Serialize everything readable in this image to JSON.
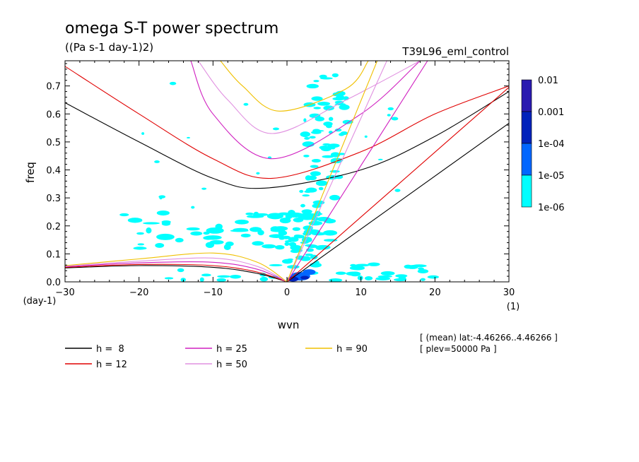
{
  "chart_data": {
    "type": "contour",
    "title": "omega S-T power spectrum",
    "subtitle": "((Pa s-1 day-1)2)",
    "run_name": "T39L96_eml_control",
    "xlabel": "wvn",
    "ylabel": "freq",
    "x_unit": "(1)",
    "y_unit": "(day-1)",
    "xlim": [
      -30,
      30
    ],
    "ylim": [
      0,
      0.79
    ],
    "xticks": [
      -30,
      -20,
      -10,
      0,
      10,
      20,
      30
    ],
    "yticks": [
      0.0,
      0.1,
      0.2,
      0.3,
      0.4,
      0.5,
      0.6,
      0.7
    ],
    "colorbar": {
      "levels": [
        "1e-06",
        "1e-05",
        "1e-04",
        "0.001",
        "0.01"
      ],
      "colors": [
        "#00ffff",
        "#0066ff",
        "#0022bb",
        "#2a1ab0"
      ]
    },
    "legend": [
      {
        "label": "h =  8",
        "color": "#000000"
      },
      {
        "label": "h = 12",
        "color": "#e00000"
      },
      {
        "label": "h = 25",
        "color": "#d020c0"
      },
      {
        "label": "h = 50",
        "color": "#e090e0"
      },
      {
        "label": "h = 90",
        "color": "#f0c000"
      }
    ],
    "dispersion_curves": {
      "kelvin": [
        {
          "h": 8,
          "points": [
            [
              0,
              0
            ],
            [
              30,
              0.567
            ]
          ]
        },
        {
          "h": 12,
          "points": [
            [
              0,
              0
            ],
            [
              30,
              0.695
            ]
          ]
        },
        {
          "h": 25,
          "points": [
            [
              0,
              0
            ],
            [
              19,
              0.79
            ]
          ]
        },
        {
          "h": 50,
          "points": [
            [
              0,
              0
            ],
            [
              13.5,
              0.79
            ]
          ]
        },
        {
          "h": 90,
          "points": [
            [
              0,
              0
            ],
            [
              12.2,
              0.79
            ]
          ]
        }
      ],
      "inertia_gravity_n1": [
        {
          "h": 8,
          "points": [
            [
              -30,
              0.64
            ],
            [
              -20,
              0.5
            ],
            [
              -10,
              0.37
            ],
            [
              -3,
              0.335
            ],
            [
              10,
              0.4
            ],
            [
              20,
              0.52
            ],
            [
              30,
              0.68
            ]
          ]
        },
        {
          "h": 12,
          "points": [
            [
              -30,
              0.77
            ],
            [
              -20,
              0.6
            ],
            [
              -10,
              0.44
            ],
            [
              -2,
              0.37
            ],
            [
              10,
              0.465
            ],
            [
              20,
              0.6
            ],
            [
              30,
              0.7
            ]
          ]
        },
        {
          "h": 25,
          "points": [
            [
              -13,
              0.79
            ],
            [
              -10,
              0.6
            ],
            [
              -2,
              0.44
            ],
            [
              10,
              0.6
            ],
            [
              18,
              0.79
            ]
          ]
        },
        {
          "h": 50,
          "points": [
            [
              -12,
              0.79
            ],
            [
              -8,
              0.65
            ],
            [
              -2,
              0.53
            ],
            [
              8,
              0.65
            ],
            [
              18,
              0.79
            ]
          ]
        },
        {
          "h": 90,
          "points": [
            [
              -9,
              0.79
            ],
            [
              -6,
              0.7
            ],
            [
              -1,
              0.61
            ],
            [
              8,
              0.69
            ],
            [
              11,
              0.79
            ]
          ]
        }
      ],
      "rossby_n1": [
        {
          "h": 8,
          "points": [
            [
              -30,
              0.05
            ],
            [
              -20,
              0.058
            ],
            [
              -10,
              0.052
            ],
            [
              -4,
              0.03
            ],
            [
              0,
              0
            ]
          ]
        },
        {
          "h": 12,
          "points": [
            [
              -30,
              0.052
            ],
            [
              -20,
              0.062
            ],
            [
              -10,
              0.058
            ],
            [
              -4,
              0.035
            ],
            [
              0,
              0
            ]
          ]
        },
        {
          "h": 25,
          "points": [
            [
              -30,
              0.054
            ],
            [
              -20,
              0.068
            ],
            [
              -10,
              0.07
            ],
            [
              -4,
              0.045
            ],
            [
              0,
              0
            ]
          ]
        },
        {
          "h": 50,
          "points": [
            [
              -30,
              0.056
            ],
            [
              -20,
              0.074
            ],
            [
              -10,
              0.085
            ],
            [
              -4,
              0.055
            ],
            [
              0,
              0
            ]
          ]
        },
        {
          "h": 90,
          "points": [
            [
              -30,
              0.058
            ],
            [
              -20,
              0.082
            ],
            [
              -10,
              0.103
            ],
            [
              -4,
              0.07
            ],
            [
              0,
              0
            ]
          ]
        }
      ]
    },
    "annotations": [
      "[ (mean) lat:-4.46266..4.46266 ]",
      "[ plev=50000 Pa ]"
    ]
  }
}
